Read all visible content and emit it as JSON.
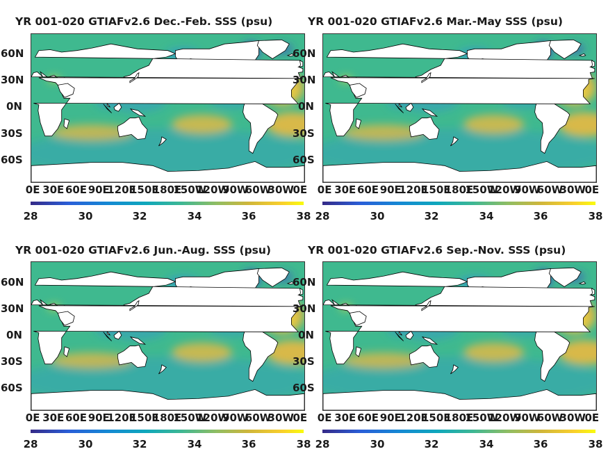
{
  "chart_data": [
    {
      "type": "heatmap",
      "title": "YR 001-020 GTIAFv2.6 Dec.-Feb. SSS (psu)",
      "lat_labels": [
        "60N",
        "30N",
        "0N",
        "30S",
        "60S"
      ],
      "lon_labels": [
        "0E",
        "30E",
        "60E",
        "90E",
        "120E",
        "150E",
        "180E",
        "150W",
        "120W",
        "90W",
        "60W",
        "30W",
        "0E"
      ],
      "colorbar": {
        "ticks": [
          "28",
          "30",
          "32",
          "34",
          "36",
          "38"
        ],
        "range": [
          28,
          38
        ]
      }
    },
    {
      "type": "heatmap",
      "title": "YR 001-020 GTIAFv2.6 Mar.-May SSS (psu)",
      "lat_labels": [
        "60N",
        "30N",
        "0N",
        "30S",
        "60S"
      ],
      "lon_labels": [
        "0E",
        "30E",
        "60E",
        "90E",
        "120E",
        "150E",
        "180E",
        "150W",
        "120W",
        "90W",
        "60W",
        "30W",
        "0E"
      ],
      "colorbar": {
        "ticks": [
          "28",
          "30",
          "32",
          "34",
          "36",
          "38"
        ],
        "range": [
          28,
          38
        ]
      }
    },
    {
      "type": "heatmap",
      "title": "YR 001-020 GTIAFv2.6 Jun.-Aug. SSS (psu)",
      "lat_labels": [
        "60N",
        "30N",
        "0N",
        "30S",
        "60S"
      ],
      "lon_labels": [
        "0E",
        "30E",
        "60E",
        "90E",
        "120E",
        "150E",
        "180E",
        "150W",
        "120W",
        "90W",
        "60W",
        "30W",
        "0E"
      ],
      "colorbar": {
        "ticks": [
          "28",
          "30",
          "32",
          "34",
          "36",
          "38"
        ],
        "range": [
          28,
          38
        ]
      }
    },
    {
      "type": "heatmap",
      "title": "YR 001-020 GTIAFv2.6 Sep.-Nov. SSS (psu)",
      "lat_labels": [
        "60N",
        "30N",
        "0N",
        "30S",
        "60S"
      ],
      "lon_labels": [
        "0E",
        "30E",
        "60E",
        "90E",
        "120E",
        "150E",
        "180E",
        "150W",
        "120W",
        "90W",
        "60W",
        "30W",
        "0E"
      ],
      "colorbar": {
        "ticks": [
          "28",
          "30",
          "32",
          "34",
          "36",
          "38"
        ],
        "range": [
          28,
          38
        ]
      }
    }
  ],
  "colors": {
    "ocean_base": "#3fb98f",
    "fresh": "#2f8fd8",
    "very_fresh": "#3a3fc8",
    "salty": "#f3b93c",
    "saltiest": "#f6e23a",
    "land": "#ffffff"
  }
}
